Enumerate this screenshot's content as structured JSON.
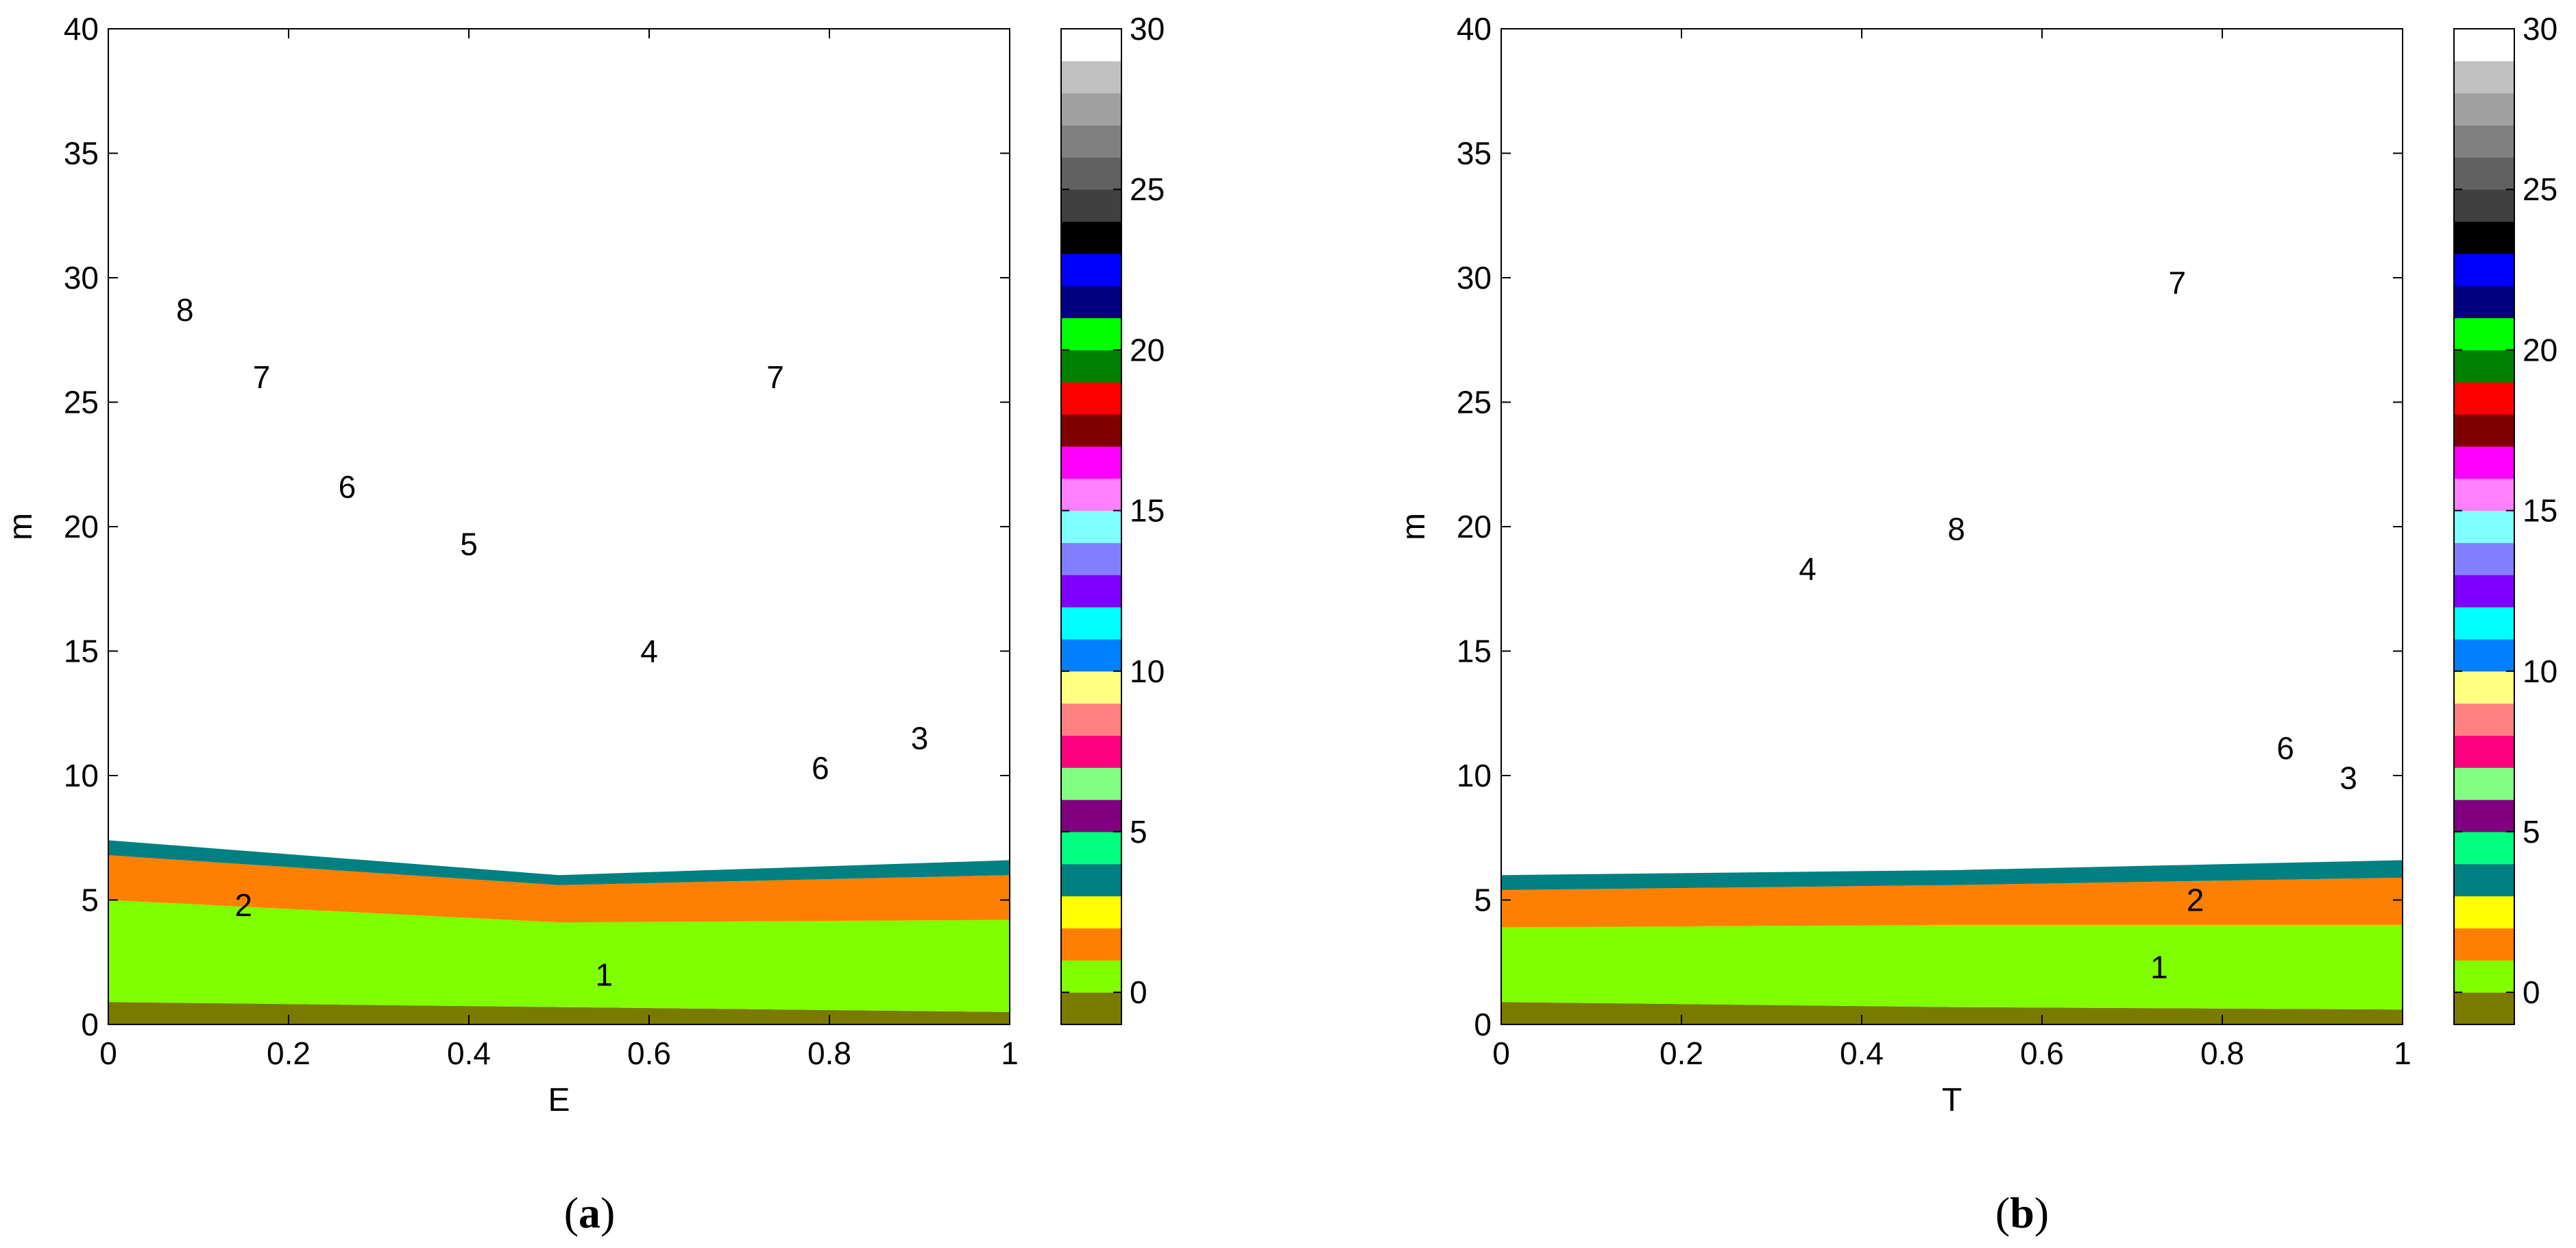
{
  "chart_data": [
    {
      "type": "heatmap",
      "xlabel": "E",
      "ylabel": "m",
      "caption_open": "(",
      "caption_letter": "a",
      "caption_close": ")",
      "xlim": [
        0,
        1
      ],
      "ylim": [
        0,
        40
      ],
      "xticks": [
        "0",
        "0.2",
        "0.4",
        "0.6",
        "0.8",
        "1"
      ],
      "yticks": [
        "0",
        "5",
        "10",
        "15",
        "20",
        "25",
        "30",
        "35",
        "40"
      ],
      "colorbar": {
        "range": [
          -1,
          30
        ],
        "ticks": [
          "0",
          "5",
          "10",
          "15",
          "20",
          "25",
          "30"
        ]
      },
      "background_value": 30,
      "bands": [
        {
          "value": -1,
          "lo": [
            0.9,
            0.7,
            0.5
          ],
          "hi": [
            0.9,
            0.7,
            0.5
          ]
        },
        {
          "value": 1,
          "lo": [
            0.9,
            0.7,
            0.5
          ],
          "hi": [
            5.0,
            4.1,
            4.2
          ]
        },
        {
          "value": 2,
          "lo": [
            5.0,
            4.1,
            4.2
          ],
          "hi": [
            6.8,
            5.6,
            6.0
          ]
        },
        {
          "value": 4,
          "lo": [
            6.8,
            5.6,
            6.0
          ],
          "hi": [
            7.4,
            6.0,
            6.6
          ]
        }
      ],
      "region_labels": [
        {
          "text": "1",
          "x": 0.55,
          "y": 2.0
        },
        {
          "text": "2",
          "x": 0.15,
          "y": 4.8
        },
        {
          "text": "3",
          "x": 0.9,
          "y": 11.5
        },
        {
          "text": "4",
          "x": 0.6,
          "y": 15.0
        },
        {
          "text": "5",
          "x": 0.4,
          "y": 19.3
        },
        {
          "text": "6",
          "x": 0.79,
          "y": 10.3
        },
        {
          "text": "6",
          "x": 0.265,
          "y": 21.6
        },
        {
          "text": "7",
          "x": 0.17,
          "y": 26.0
        },
        {
          "text": "7",
          "x": 0.74,
          "y": 26.0
        },
        {
          "text": "8",
          "x": 0.085,
          "y": 28.7
        }
      ]
    },
    {
      "type": "heatmap",
      "xlabel": "T",
      "ylabel": "m",
      "caption_open": "(",
      "caption_letter": "b",
      "caption_close": ")",
      "xlim": [
        0,
        1
      ],
      "ylim": [
        0,
        40
      ],
      "xticks": [
        "0",
        "0.2",
        "0.4",
        "0.6",
        "0.8",
        "1"
      ],
      "yticks": [
        "0",
        "5",
        "10",
        "15",
        "20",
        "25",
        "30",
        "35",
        "40"
      ],
      "colorbar": {
        "range": [
          -1,
          30
        ],
        "ticks": [
          "0",
          "5",
          "10",
          "15",
          "20",
          "25",
          "30"
        ]
      },
      "background_value": 30,
      "bands": [
        {
          "value": -1,
          "lo": [
            0.9,
            0.7,
            0.6
          ],
          "hi": [
            0.9,
            0.7,
            0.6
          ]
        },
        {
          "value": 1,
          "lo": [
            0.9,
            0.7,
            0.6
          ],
          "hi": [
            3.9,
            4.0,
            4.0
          ]
        },
        {
          "value": 2,
          "lo": [
            3.9,
            4.0,
            4.0
          ],
          "hi": [
            5.4,
            5.6,
            5.9
          ]
        },
        {
          "value": 4,
          "lo": [
            5.4,
            5.6,
            5.9
          ],
          "hi": [
            6.0,
            6.2,
            6.6
          ]
        }
      ],
      "region_labels": [
        {
          "text": "1",
          "x": 0.73,
          "y": 2.3
        },
        {
          "text": "2",
          "x": 0.77,
          "y": 5.0
        },
        {
          "text": "3",
          "x": 0.94,
          "y": 9.9
        },
        {
          "text": "4",
          "x": 0.34,
          "y": 18.3
        },
        {
          "text": "6",
          "x": 0.87,
          "y": 11.1
        },
        {
          "text": "7",
          "x": 0.75,
          "y": 29.8
        },
        {
          "text": "8",
          "x": 0.505,
          "y": 19.9
        }
      ]
    }
  ],
  "palette": {
    "-1": "#7a7a00",
    "0": "#80ff00",
    "1": "#80ff00",
    "2": "#ff8000",
    "3": "#ffff00",
    "4": "#008080",
    "5": "#00ff80",
    "6": "#800080",
    "7": "#80ff80",
    "8": "#ff0080",
    "9": "#ff8080",
    "10": "#ffff80",
    "11": "#0080ff",
    "12": "#00ffff",
    "13": "#8000ff",
    "14": "#8080ff",
    "15": "#80ffff",
    "16": "#ff80ff",
    "17": "#ff00ff",
    "18": "#800000",
    "19": "#ff0000",
    "20": "#ff0000",
    "21": "#008000",
    "22": "#00ff00",
    "23": "#000080",
    "24": "#0000ff",
    "25": "#000000",
    "26": "#404040",
    "27": "#808080",
    "28": "#a0a0a0",
    "29": "#c0c0c0",
    "30": "#ffffff"
  },
  "colorbar_colors": [
    "#7a7a00",
    "#80ff00",
    "#ff8000",
    "#ffff00",
    "#008080",
    "#00ff80",
    "#800080",
    "#80ff80",
    "#ff0080",
    "#ff8080",
    "#ffff80",
    "#0080ff",
    "#00ffff",
    "#8000ff",
    "#8080ff",
    "#80ffff",
    "#ff80ff",
    "#ff00ff",
    "#800000",
    "#ff0000",
    "#008000",
    "#00ff00",
    "#000080",
    "#0000ff",
    "#000000",
    "#404040",
    "#606060",
    "#808080",
    "#a0a0a0",
    "#c0c0c0",
    "#ffffff"
  ]
}
